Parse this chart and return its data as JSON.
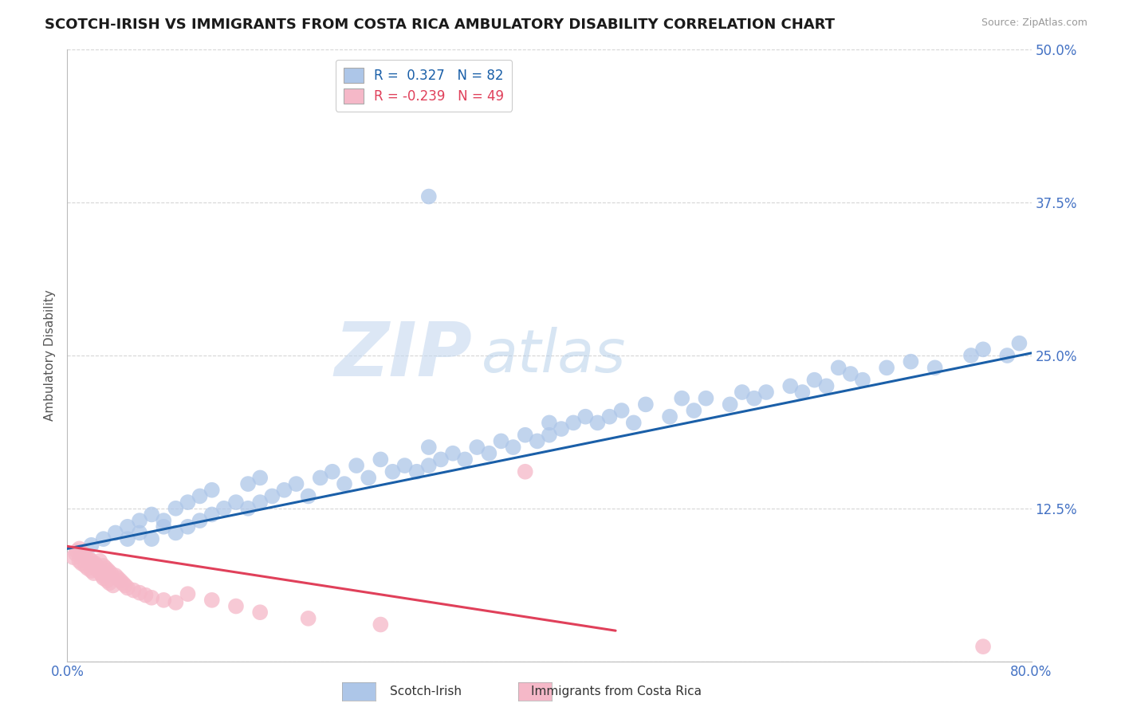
{
  "title": "SCOTCH-IRISH VS IMMIGRANTS FROM COSTA RICA AMBULATORY DISABILITY CORRELATION CHART",
  "source": "Source: ZipAtlas.com",
  "ylabel": "Ambulatory Disability",
  "xlim": [
    0.0,
    0.8
  ],
  "ylim": [
    0.0,
    0.5
  ],
  "yticks": [
    0.0,
    0.125,
    0.25,
    0.375,
    0.5
  ],
  "yticklabels": [
    "",
    "12.5%",
    "25.0%",
    "37.5%",
    "50.0%"
  ],
  "blue_R": 0.327,
  "blue_N": 82,
  "pink_R": -0.239,
  "pink_N": 49,
  "background_color": "#ffffff",
  "grid_color": "#cccccc",
  "blue_color": "#adc6e8",
  "blue_line_color": "#1a5fa8",
  "pink_color": "#f5b8c8",
  "pink_line_color": "#e0405a",
  "tick_color": "#4472c4",
  "watermark_zip_color": "#d0dff0",
  "watermark_atlas_color": "#b8d4ec",
  "title_fontsize": 13,
  "axis_label_fontsize": 11,
  "tick_fontsize": 12,
  "legend_fontsize": 12,
  "blue_line_x": [
    0.0,
    0.8
  ],
  "blue_line_y": [
    0.092,
    0.252
  ],
  "pink_line_x": [
    0.0,
    0.455
  ],
  "pink_line_y": [
    0.094,
    0.025
  ],
  "blue_x": [
    0.02,
    0.03,
    0.04,
    0.05,
    0.05,
    0.06,
    0.06,
    0.07,
    0.07,
    0.08,
    0.08,
    0.09,
    0.09,
    0.1,
    0.1,
    0.11,
    0.11,
    0.12,
    0.12,
    0.13,
    0.14,
    0.15,
    0.15,
    0.16,
    0.16,
    0.17,
    0.18,
    0.19,
    0.2,
    0.21,
    0.22,
    0.23,
    0.24,
    0.25,
    0.26,
    0.27,
    0.28,
    0.29,
    0.3,
    0.3,
    0.31,
    0.32,
    0.33,
    0.34,
    0.35,
    0.36,
    0.37,
    0.38,
    0.39,
    0.4,
    0.4,
    0.41,
    0.42,
    0.43,
    0.44,
    0.45,
    0.46,
    0.47,
    0.48,
    0.5,
    0.51,
    0.52,
    0.53,
    0.55,
    0.56,
    0.57,
    0.58,
    0.6,
    0.61,
    0.62,
    0.63,
    0.65,
    0.66,
    0.68,
    0.7,
    0.72,
    0.75,
    0.76,
    0.78,
    0.79,
    0.64,
    0.3
  ],
  "blue_y": [
    0.095,
    0.1,
    0.105,
    0.1,
    0.11,
    0.105,
    0.115,
    0.1,
    0.12,
    0.11,
    0.115,
    0.105,
    0.125,
    0.11,
    0.13,
    0.115,
    0.135,
    0.12,
    0.14,
    0.125,
    0.13,
    0.125,
    0.145,
    0.13,
    0.15,
    0.135,
    0.14,
    0.145,
    0.135,
    0.15,
    0.155,
    0.145,
    0.16,
    0.15,
    0.165,
    0.155,
    0.16,
    0.155,
    0.16,
    0.175,
    0.165,
    0.17,
    0.165,
    0.175,
    0.17,
    0.18,
    0.175,
    0.185,
    0.18,
    0.185,
    0.195,
    0.19,
    0.195,
    0.2,
    0.195,
    0.2,
    0.205,
    0.195,
    0.21,
    0.2,
    0.215,
    0.205,
    0.215,
    0.21,
    0.22,
    0.215,
    0.22,
    0.225,
    0.22,
    0.23,
    0.225,
    0.235,
    0.23,
    0.24,
    0.245,
    0.24,
    0.25,
    0.255,
    0.25,
    0.26,
    0.24,
    0.38
  ],
  "pink_x": [
    0.005,
    0.007,
    0.008,
    0.01,
    0.01,
    0.012,
    0.013,
    0.015,
    0.015,
    0.017,
    0.018,
    0.02,
    0.02,
    0.022,
    0.023,
    0.024,
    0.025,
    0.026,
    0.027,
    0.028,
    0.029,
    0.03,
    0.03,
    0.032,
    0.033,
    0.034,
    0.035,
    0.036,
    0.038,
    0.04,
    0.042,
    0.044,
    0.046,
    0.048,
    0.05,
    0.055,
    0.06,
    0.065,
    0.07,
    0.08,
    0.09,
    0.1,
    0.12,
    0.14,
    0.16,
    0.2,
    0.26,
    0.38,
    0.76
  ],
  "pink_y": [
    0.085,
    0.088,
    0.09,
    0.082,
    0.092,
    0.08,
    0.088,
    0.078,
    0.086,
    0.076,
    0.084,
    0.074,
    0.082,
    0.072,
    0.08,
    0.078,
    0.076,
    0.074,
    0.082,
    0.072,
    0.07,
    0.078,
    0.068,
    0.076,
    0.066,
    0.074,
    0.064,
    0.072,
    0.062,
    0.07,
    0.068,
    0.066,
    0.064,
    0.062,
    0.06,
    0.058,
    0.056,
    0.054,
    0.052,
    0.05,
    0.048,
    0.055,
    0.05,
    0.045,
    0.04,
    0.035,
    0.03,
    0.155,
    0.012
  ]
}
